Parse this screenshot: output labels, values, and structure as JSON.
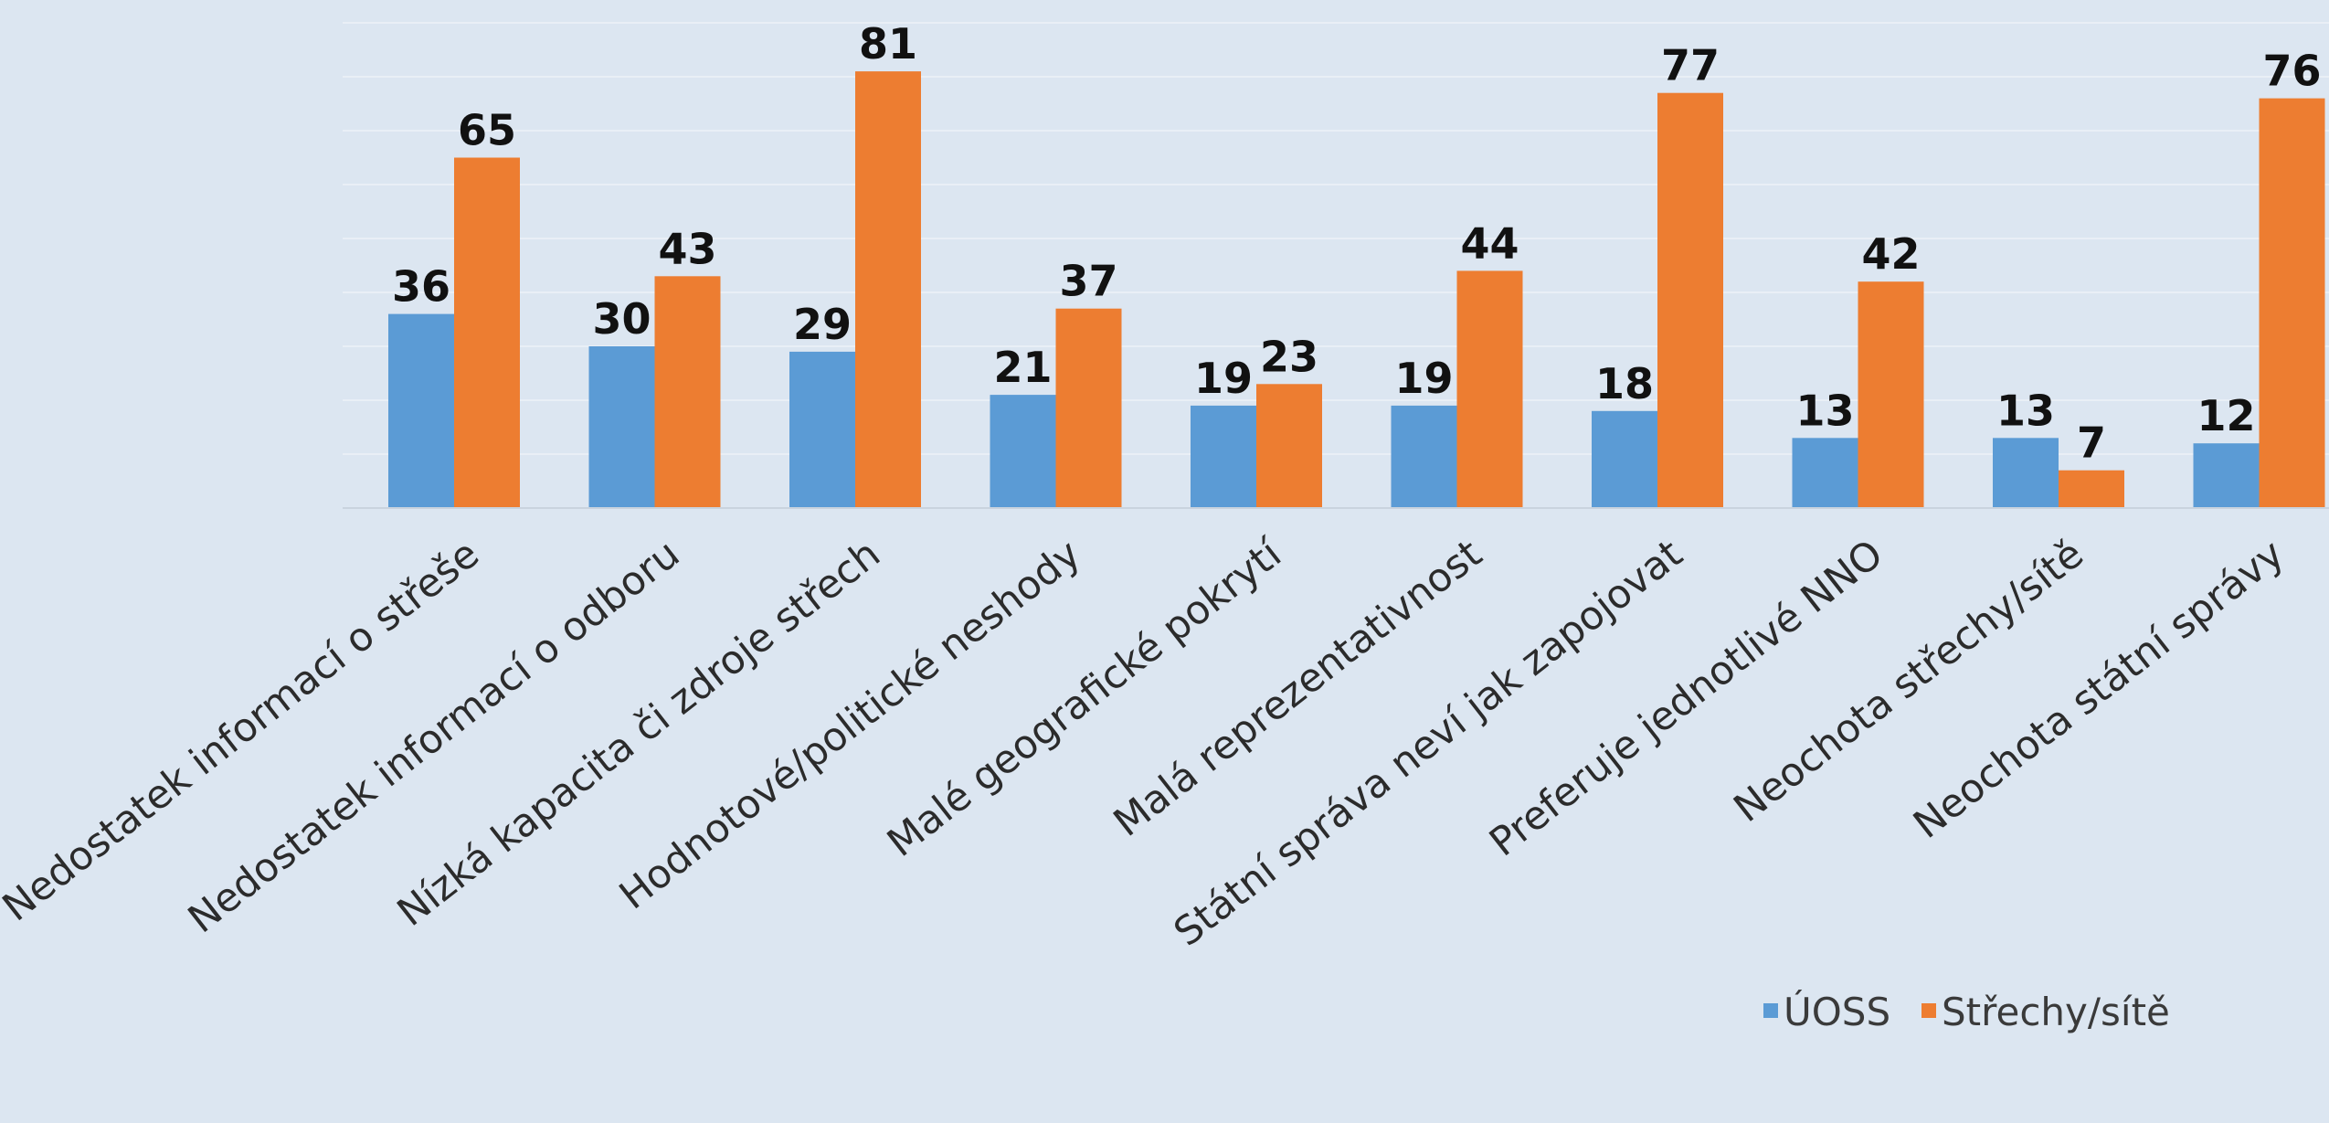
{
  "chart_data": {
    "type": "bar",
    "categories": [
      "Nedostatek informací o střeše",
      "Nedostatek informací o odboru",
      "Nízká kapacita či zdroje střech",
      "Hodnotové/politické neshody",
      "Malé geografické pokrytí",
      "Malá reprezentativnost",
      "Státní správa neví jak zapojovat",
      "Preferuje jednotlivé NNO",
      "Neochota střechy/sítě",
      "Neochota státní správy"
    ],
    "series": [
      {
        "name": "ÚOSS",
        "color": "#5b9bd5",
        "values": [
          36,
          30,
          29,
          21,
          19,
          19,
          18,
          13,
          13,
          12
        ]
      },
      {
        "name": "Střechy/sítě",
        "color": "#ed7d31",
        "values": [
          65,
          43,
          81,
          37,
          23,
          44,
          77,
          42,
          7,
          76
        ]
      }
    ],
    "ylim": [
      0,
      90
    ],
    "grid": true,
    "legend": "bottom-right",
    "data_labels": true
  },
  "colors": {
    "background": "#dce6f1",
    "gridline": "#e9eff6",
    "axis": "#c9d3de"
  }
}
